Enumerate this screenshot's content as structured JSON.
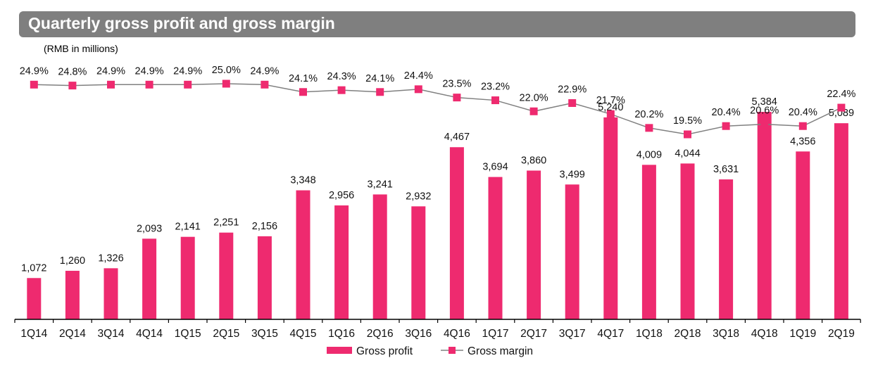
{
  "header": {
    "title": "Quarterly gross profit and gross margin",
    "subtitle": "(RMB in millions)"
  },
  "colors": {
    "bar": "#ee2a6f",
    "line": "#808080",
    "title_bg": "#7f7f7f",
    "title_text": "#ffffff"
  },
  "chart_data": {
    "type": "bar+line",
    "title": "Quarterly gross profit and gross margin",
    "subtitle": "(RMB in millions)",
    "categories": [
      "1Q14",
      "2Q14",
      "3Q14",
      "4Q14",
      "1Q15",
      "2Q15",
      "3Q15",
      "4Q15",
      "1Q16",
      "2Q16",
      "3Q16",
      "4Q16",
      "1Q17",
      "2Q17",
      "3Q17",
      "4Q17",
      "1Q18",
      "2Q18",
      "3Q18",
      "4Q18",
      "1Q19",
      "2Q19"
    ],
    "series": [
      {
        "name": "Gross profit",
        "type": "bar",
        "axis": "primary",
        "values": [
          1072,
          1260,
          1326,
          2093,
          2141,
          2251,
          2156,
          3348,
          2956,
          3241,
          2932,
          4467,
          3694,
          3860,
          3499,
          5240,
          4009,
          4044,
          3631,
          5384,
          4356,
          5089
        ],
        "labels": [
          "1,072",
          "1,260",
          "1,326",
          "2,093",
          "2,141",
          "2,251",
          "2,156",
          "3,348",
          "2,956",
          "3,241",
          "2,932",
          "4,467",
          "3,694",
          "3,860",
          "3,499",
          "5,240",
          "4,009",
          "4,044",
          "3,631",
          "5,384",
          "4,356",
          "5,089"
        ]
      },
      {
        "name": "Gross margin",
        "type": "line",
        "axis": "secondary",
        "unit": "%",
        "values": [
          24.9,
          24.8,
          24.9,
          24.9,
          24.9,
          25.0,
          24.9,
          24.1,
          24.3,
          24.1,
          24.4,
          23.5,
          23.2,
          22.0,
          22.9,
          21.7,
          20.2,
          19.5,
          20.4,
          20.6,
          20.4,
          22.4
        ],
        "labels": [
          "24.9%",
          "24.8%",
          "24.9%",
          "24.9%",
          "24.9%",
          "25.0%",
          "24.9%",
          "24.1%",
          "24.3%",
          "24.1%",
          "24.4%",
          "23.5%",
          "23.2%",
          "22.0%",
          "22.9%",
          "21.7%",
          "20.2%",
          "19.5%",
          "20.4%",
          "20.6%",
          "20.4%",
          "22.4%"
        ]
      }
    ],
    "xlabel": "",
    "ylabel": "",
    "ylim": [
      0,
      6000
    ],
    "y2lim": [
      12,
      26
    ],
    "grid": false,
    "legend": {
      "position": "bottom-center",
      "entries": [
        "Gross profit",
        "Gross margin"
      ]
    }
  }
}
